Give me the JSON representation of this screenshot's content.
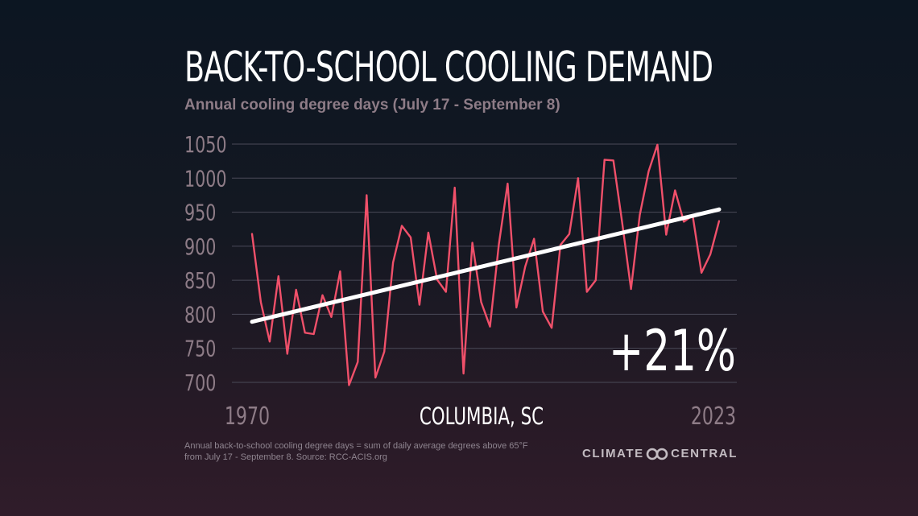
{
  "title": "BACK-TO-SCHOOL COOLING DEMAND",
  "subtitle": "Annual cooling degree days (July 17 - September 8)",
  "location": "COLUMBIA, SC",
  "change_label": "+21%",
  "footnote": "Annual back-to-school cooling degree days = sum of daily average degrees above 65°F from July 17 - September 8. Source: RCC-ACIS.org",
  "brand": {
    "left": "CLIMATE",
    "right": "CENTRAL",
    "logo_icon": "interlocking-rings-icon"
  },
  "colors": {
    "background": "#111a24",
    "series": "#f0506a",
    "trend": "#ffffff",
    "grid": "#4a4a58",
    "tick_label": "#8e7c87"
  },
  "chart_data": {
    "type": "line",
    "title": "BACK-TO-SCHOOL COOLING DEMAND",
    "subtitle": "Annual cooling degree days (July 17 - September 8)",
    "xlabel": "",
    "ylabel": "",
    "x_tick_labels": [
      "1970",
      "2023"
    ],
    "y_ticks": [
      700,
      750,
      800,
      850,
      900,
      950,
      1000,
      1050
    ],
    "xlim": [
      1970,
      2023
    ],
    "ylim": [
      700,
      1050
    ],
    "grid": true,
    "legend": "none",
    "series": [
      {
        "x": [
          1970,
          1971,
          1972,
          1973,
          1974,
          1975,
          1976,
          1977,
          1978,
          1979,
          1980,
          1981,
          1982,
          1983,
          1984,
          1985,
          1986,
          1987,
          1988,
          1989,
          1990,
          1991,
          1992,
          1993,
          1994,
          1995,
          1996,
          1997,
          1998,
          1999,
          2000,
          2001,
          2002,
          2003,
          2004,
          2005,
          2006,
          2007,
          2008,
          2009,
          2010,
          2011,
          2012,
          2013,
          2014,
          2015,
          2016,
          2017,
          2018,
          2019,
          2020,
          2021,
          2022,
          2023
        ],
        "values": [
          918,
          818,
          760,
          856,
          742,
          836,
          773,
          771,
          828,
          796,
          863,
          696,
          730,
          975,
          707,
          745,
          876,
          930,
          913,
          814,
          920,
          851,
          833,
          986,
          713,
          905,
          818,
          782,
          902,
          992,
          810,
          870,
          911,
          804,
          780,
          902,
          918,
          1000,
          833,
          850,
          1027,
          1026,
          935,
          837,
          946,
          1010,
          1049,
          917,
          982,
          936,
          945,
          861,
          888,
          937
        ]
      },
      {
        "x": [
          1970,
          2023
        ],
        "values": [
          789,
          954
        ]
      }
    ],
    "annotations": [
      "+21%",
      "COLUMBIA, SC"
    ]
  }
}
